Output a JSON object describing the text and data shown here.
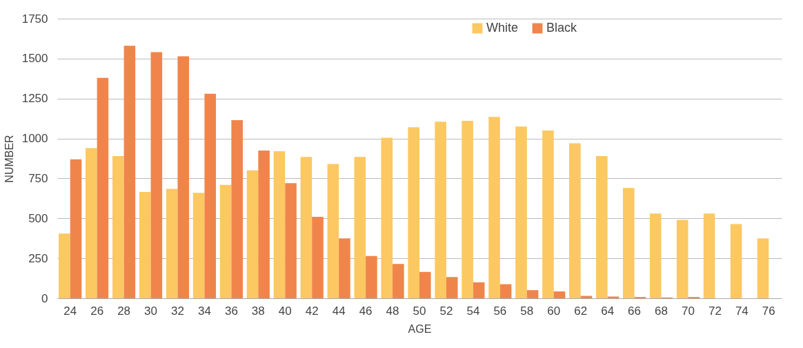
{
  "chart_data": {
    "type": "bar",
    "xlabel": "AGE",
    "ylabel": "NUMBER",
    "categories": [
      "24",
      "26",
      "28",
      "30",
      "32",
      "34",
      "36",
      "38",
      "40",
      "42",
      "44",
      "46",
      "48",
      "50",
      "52",
      "54",
      "56",
      "58",
      "60",
      "62",
      "64",
      "66",
      "68",
      "70",
      "72",
      "74",
      "76"
    ],
    "series": [
      {
        "name": "White",
        "color": "#fcc862",
        "values": [
          405,
          940,
          890,
          665,
          685,
          660,
          710,
          800,
          920,
          885,
          840,
          885,
          1005,
          1070,
          1105,
          1110,
          1135,
          1075,
          1050,
          970,
          890,
          690,
          530,
          490,
          530,
          465,
          375
        ]
      },
      {
        "name": "Black",
        "color": "#f0854c",
        "values": [
          870,
          1380,
          1580,
          1540,
          1515,
          1280,
          1115,
          925,
          720,
          510,
          375,
          265,
          215,
          165,
          133,
          100,
          88,
          51,
          43,
          15,
          11,
          8,
          5,
          8,
          0,
          0,
          0
        ]
      }
    ],
    "ylim": [
      0,
      1750
    ],
    "yticks": [
      0,
      250,
      500,
      750,
      1000,
      1250,
      1500,
      1750
    ],
    "grid": "y",
    "legend": "top"
  }
}
